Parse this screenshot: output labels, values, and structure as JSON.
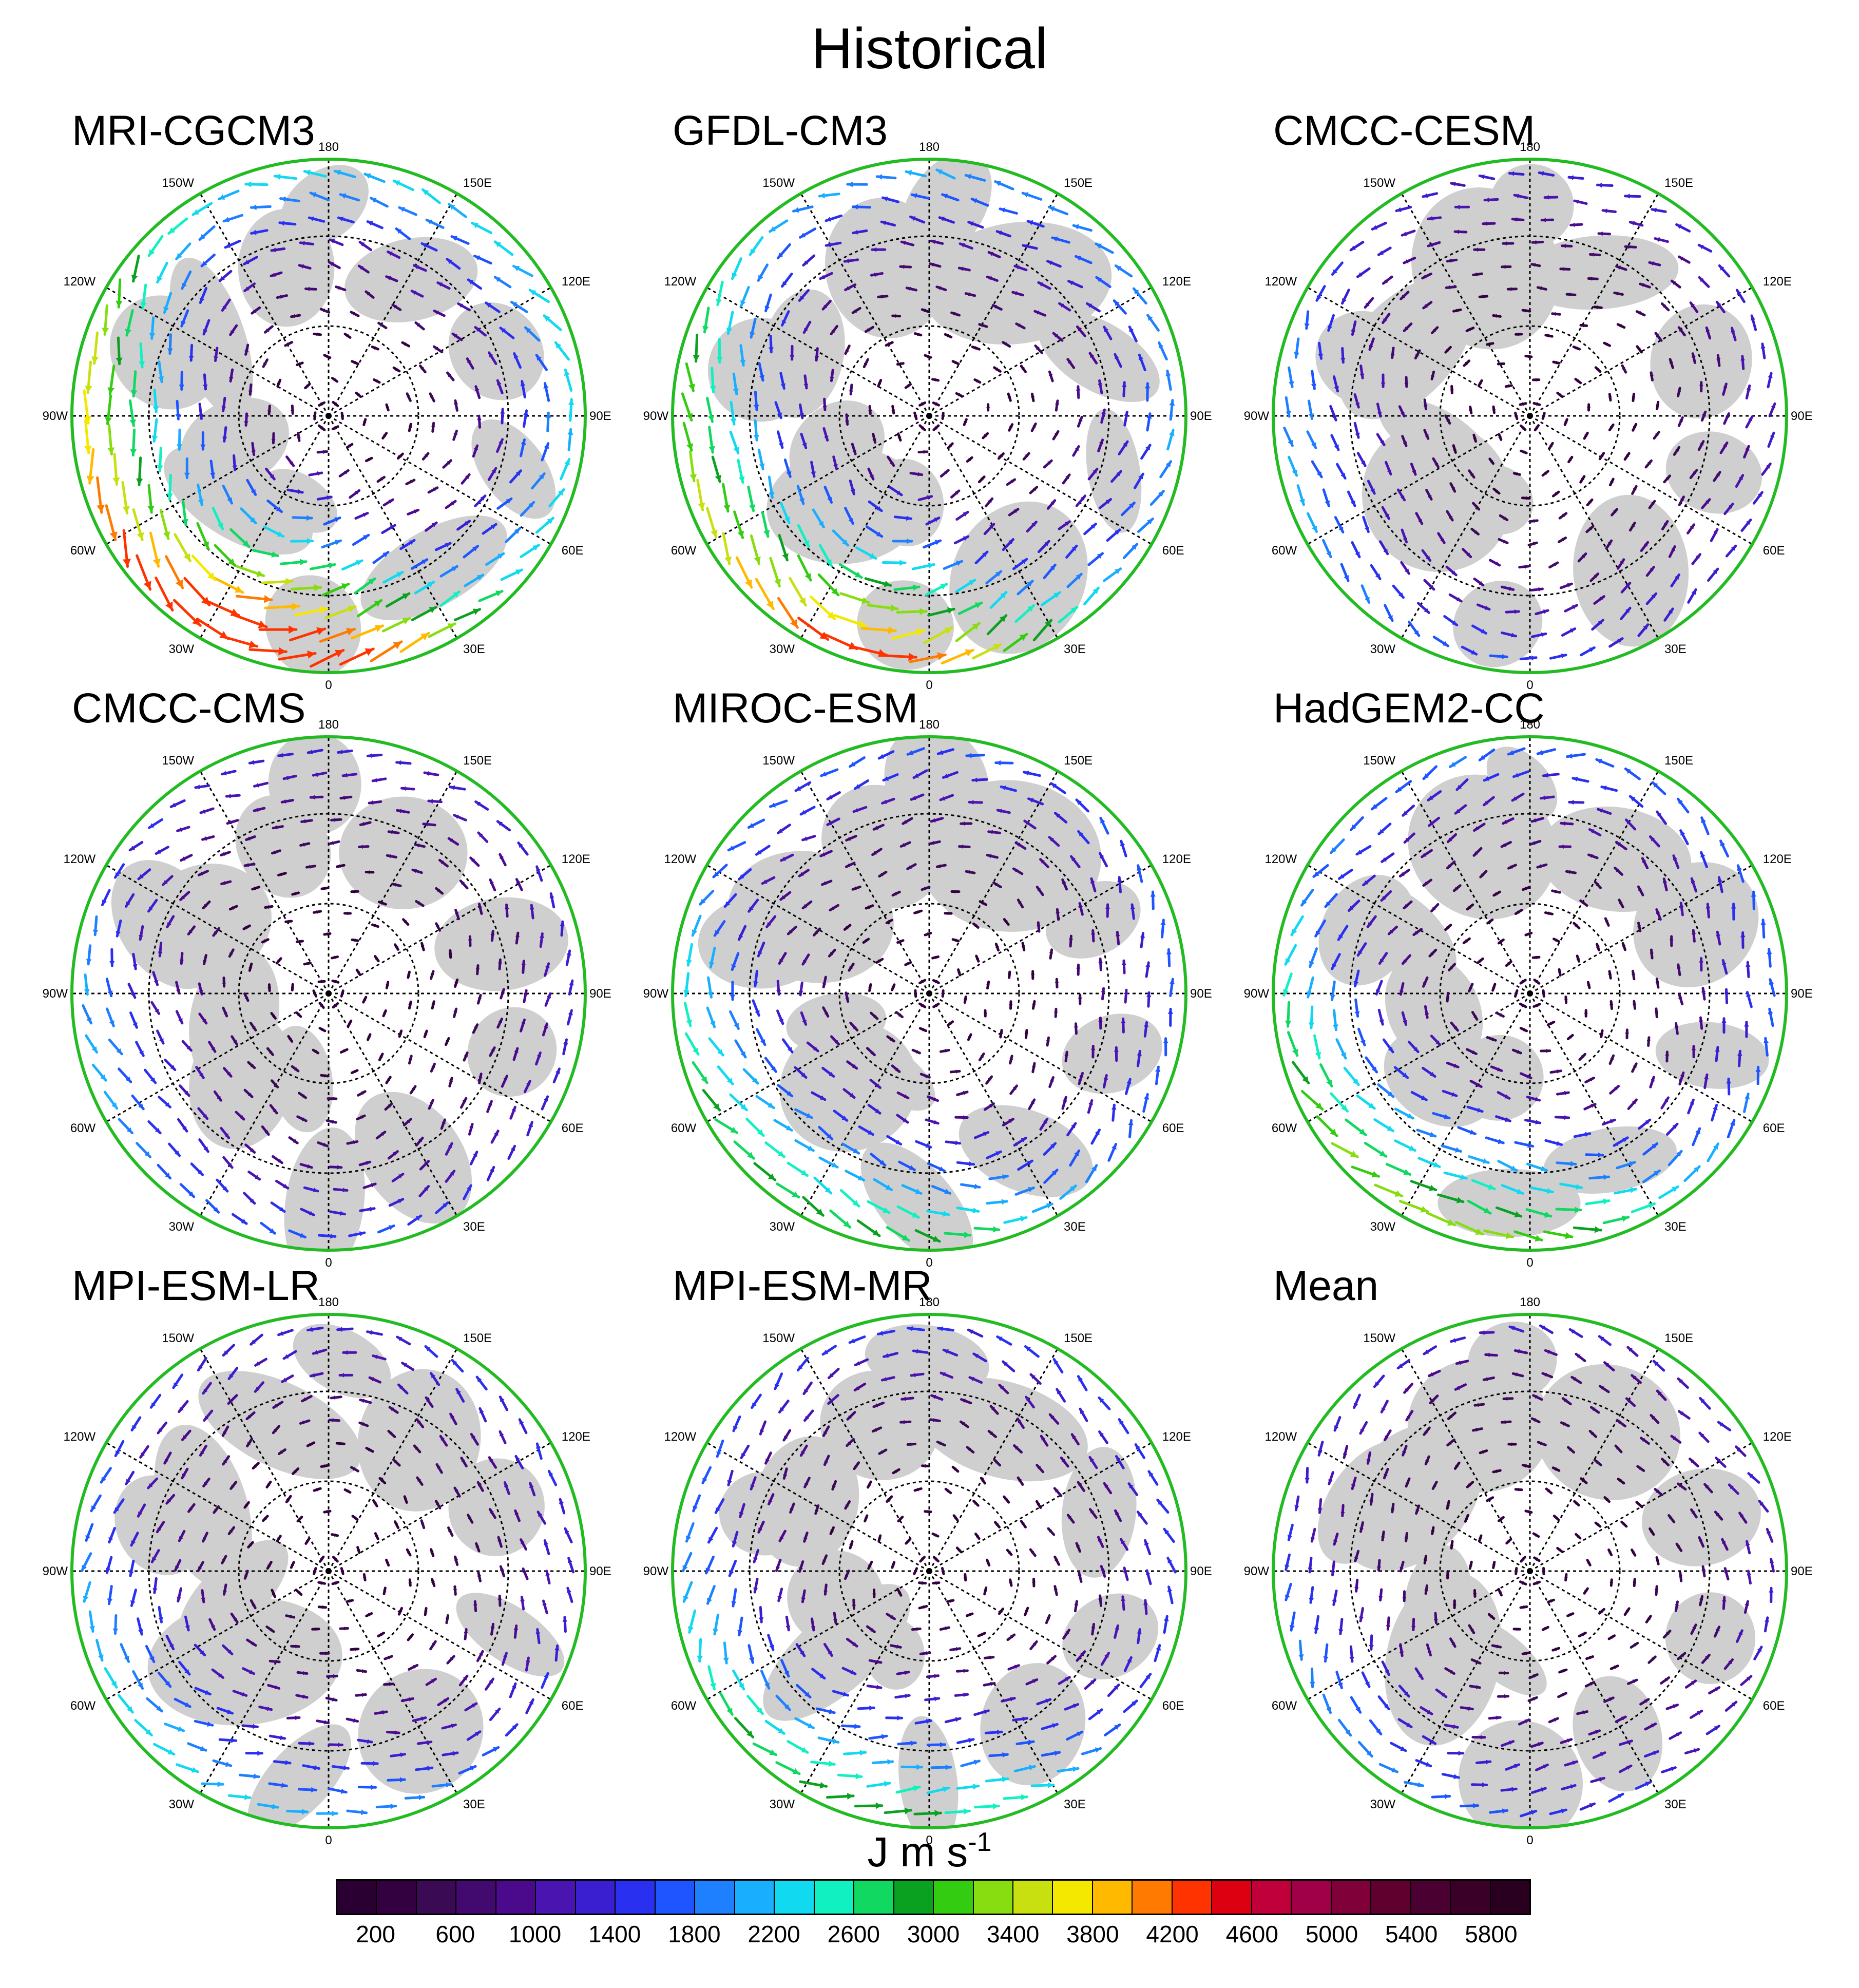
{
  "figure": {
    "title": "Historical"
  },
  "panels": [
    {
      "title": "MRI-CGCM3",
      "strength": 1.0,
      "phase": 0.0,
      "hot": 1.0
    },
    {
      "title": "GFDL-CM3",
      "strength": 0.85,
      "phase": 0.6,
      "hot": 0.8
    },
    {
      "title": "CMCC-CESM",
      "strength": 0.55,
      "phase": 1.3,
      "hot": 0.1
    },
    {
      "title": "CMCC-CMS",
      "strength": 0.55,
      "phase": 2.1,
      "hot": 0.1
    },
    {
      "title": "MIROC-ESM",
      "strength": 0.7,
      "phase": 2.9,
      "hot": 0.4
    },
    {
      "title": "HadGEM2-CC",
      "strength": 0.75,
      "phase": 3.6,
      "hot": 0.5
    },
    {
      "title": "MPI-ESM-LR",
      "strength": 0.6,
      "phase": 4.4,
      "hot": 0.2
    },
    {
      "title": "MPI-ESM-MR",
      "strength": 0.65,
      "phase": 5.1,
      "hot": 0.4
    },
    {
      "title": "Mean",
      "strength": 0.5,
      "phase": 5.8,
      "hot": 0.1
    }
  ],
  "longitude_labels": {
    "top": "180",
    "bottom": "0",
    "left": "90W",
    "right": "90E",
    "ul_outer": "120W",
    "ul_inner": "150W",
    "ur_inner": "150E",
    "ur_outer": "120E",
    "ll_outer": "60W",
    "ll_inner": "30W",
    "lr_inner": "30E",
    "lr_outer": "60E"
  },
  "colors": {
    "boundary": "#22bb22",
    "land": "#cfcfcf",
    "graticule": "#000000",
    "ocean": "#ffffff"
  },
  "colorbar": {
    "units_main": "J m s",
    "units_exp": "-1",
    "tick_labels": [
      "200",
      "600",
      "1000",
      "1400",
      "1800",
      "2200",
      "2600",
      "3000",
      "3400",
      "3800",
      "4200",
      "4600",
      "5000",
      "5400",
      "5800"
    ],
    "swatches": [
      "#2a0033",
      "#330040",
      "#3a0a55",
      "#420a6e",
      "#4b0a8c",
      "#4a14b0",
      "#3a1fd0",
      "#2a30f0",
      "#1f55ff",
      "#1e80ff",
      "#1aaeff",
      "#10d9f0",
      "#10f0c0",
      "#10d860",
      "#0aa020",
      "#33cc11",
      "#88dd11",
      "#c8e010",
      "#f5e800",
      "#ffba00",
      "#ff7a00",
      "#ff3300",
      "#dd0011",
      "#c0003a",
      "#a00048",
      "#80003a",
      "#60002e",
      "#4a0030",
      "#3a0028",
      "#2a0020"
    ]
  }
}
